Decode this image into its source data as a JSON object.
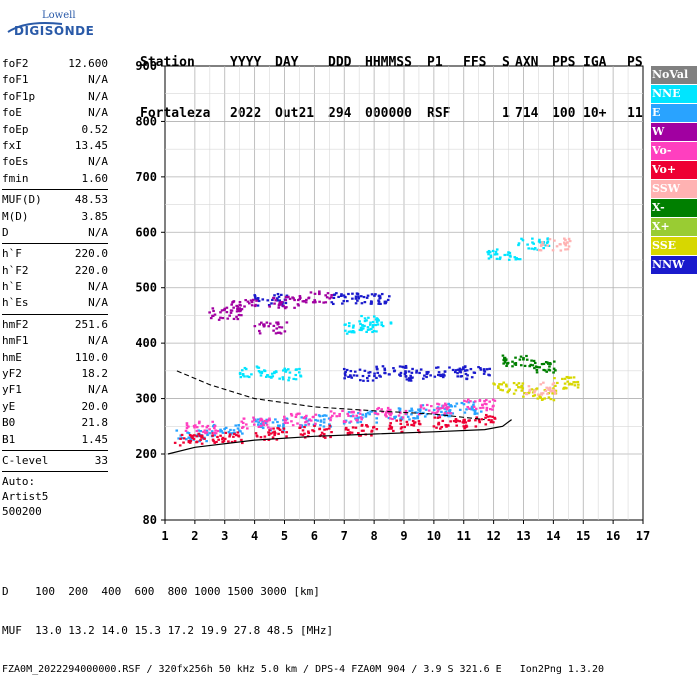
{
  "logo": {
    "top": "Lowell",
    "bottom": "DIGISONDE"
  },
  "header": {
    "labels": [
      "Station",
      "YYYY",
      "DAY",
      "DDD",
      "HHMMSS",
      "P1",
      "FFS",
      "S",
      "AXN",
      "PPS",
      "IGA",
      "PS"
    ],
    "values": [
      "Fortaleza",
      "2022",
      "Out21",
      "294",
      "000000",
      "RSF",
      "",
      "1",
      "714",
      "100",
      "10+",
      "11"
    ]
  },
  "params": [
    {
      "label": "foF2",
      "value": "12.600"
    },
    {
      "label": "foF1",
      "value": "N/A"
    },
    {
      "label": "foF1p",
      "value": "N/A"
    },
    {
      "label": "foE",
      "value": "N/A"
    },
    {
      "label": "foEp",
      "value": "0.52"
    },
    {
      "label": "fxI",
      "value": "13.45"
    },
    {
      "label": "foEs",
      "value": "N/A"
    },
    {
      "label": "fmin",
      "value": "1.60"
    },
    {
      "sep": true
    },
    {
      "label": "MUF(D)",
      "value": "48.53"
    },
    {
      "label": "M(D)",
      "value": "3.85"
    },
    {
      "label": "D",
      "value": "N/A"
    },
    {
      "sep": true
    },
    {
      "label": "h`F",
      "value": "220.0"
    },
    {
      "label": "h`F2",
      "value": "220.0"
    },
    {
      "label": "h`E",
      "value": "N/A"
    },
    {
      "label": "h`Es",
      "value": "N/A"
    },
    {
      "sep": true
    },
    {
      "label": "hmF2",
      "value": "251.6"
    },
    {
      "label": "hmF1",
      "value": "N/A"
    },
    {
      "label": "hmE",
      "value": "110.0"
    },
    {
      "label": "yF2",
      "value": "18.2"
    },
    {
      "label": "yF1",
      "value": "N/A"
    },
    {
      "label": "yE",
      "value": "20.0"
    },
    {
      "label": "B0",
      "value": "21.8"
    },
    {
      "label": "B1",
      "value": "1.45"
    },
    {
      "sep": true
    },
    {
      "label": "C-level",
      "value": "33"
    },
    {
      "sep": true
    },
    {
      "free": "Auto:"
    },
    {
      "free": "Artist5"
    },
    {
      "free": "500200"
    }
  ],
  "legend": [
    {
      "label": "NoVal",
      "color": "#808080"
    },
    {
      "label": "NNE",
      "color": "#00e5ff"
    },
    {
      "label": "E",
      "color": "#29a3ff"
    },
    {
      "label": "W",
      "color": "#a100a1"
    },
    {
      "label": "Vo-",
      "color": "#ff3fbf"
    },
    {
      "label": "Vo+",
      "color": "#ee0033"
    },
    {
      "label": "SSW",
      "color": "#ffb2b2"
    },
    {
      "label": "X-",
      "color": "#007f00"
    },
    {
      "label": "X+",
      "color": "#99cc33"
    },
    {
      "label": "SSE",
      "color": "#d7d700"
    },
    {
      "label": "NNW",
      "color": "#1a1acc"
    }
  ],
  "footer": {
    "line1": "D    100  200  400  600  800 1000 1500 3000 [km]",
    "line2": "MUF  13.0 13.2 14.0 15.3 17.2 19.9 27.8 48.5 [MHz]",
    "line3": "FZA0M_2022294000000.RSF / 320fx256h 50 kHz 5.0 km / DPS-4 FZA0M 904 / 3.9 S 321.6 E   Ion2Png 1.3.20"
  },
  "chart_data": {
    "type": "scatter",
    "title": "",
    "xlabel": "",
    "ylabel": "",
    "xlim": [
      1,
      17
    ],
    "ylim": [
      80,
      900
    ],
    "x_ticks": [
      1,
      2,
      3,
      4,
      5,
      6,
      7,
      8,
      9,
      10,
      11,
      12,
      13,
      14,
      15,
      16,
      17
    ],
    "y_ticks": [
      80,
      200,
      300,
      400,
      500,
      600,
      700,
      800,
      900
    ],
    "grid": true,
    "legend_position": "right",
    "series": [
      {
        "name": "E",
        "points": [
          [
            1.9,
            235
          ],
          [
            3.0,
            245
          ],
          [
            4.5,
            255
          ],
          [
            6.0,
            262
          ],
          [
            7.5,
            268
          ],
          [
            9.0,
            275
          ],
          [
            10.0,
            280
          ],
          [
            11.0,
            285
          ]
        ]
      },
      {
        "name": "Vo+",
        "points": [
          [
            1.8,
            228
          ],
          [
            3.0,
            232
          ],
          [
            4.5,
            238
          ],
          [
            6.0,
            242
          ],
          [
            7.5,
            246
          ],
          [
            9.0,
            252
          ],
          [
            10.5,
            258
          ],
          [
            11.5,
            262
          ]
        ]
      },
      {
        "name": "Vo-",
        "points": [
          [
            2.2,
            250
          ],
          [
            4.0,
            258
          ],
          [
            5.5,
            264
          ],
          [
            7.0,
            270
          ],
          [
            8.5,
            276
          ],
          [
            10.0,
            282
          ],
          [
            11.5,
            290
          ]
        ]
      },
      {
        "name": "NNW",
        "points": [
          [
            7.5,
            345
          ],
          [
            8.5,
            350
          ],
          [
            9.5,
            345
          ],
          [
            10.5,
            350
          ],
          [
            11.3,
            348
          ],
          [
            8.0,
            480
          ],
          [
            7.0,
            482
          ],
          [
            4.5,
            480
          ]
        ]
      },
      {
        "name": "W",
        "points": [
          [
            3.0,
            455
          ],
          [
            3.5,
            470
          ],
          [
            4.5,
            430
          ],
          [
            5.0,
            475
          ],
          [
            6.0,
            485
          ]
        ]
      },
      {
        "name": "NNE",
        "points": [
          [
            4.0,
            350
          ],
          [
            5.0,
            345
          ],
          [
            7.5,
            430
          ],
          [
            8.0,
            440
          ],
          [
            12.3,
            560
          ],
          [
            13.3,
            580
          ]
        ]
      },
      {
        "name": "SSE",
        "points": [
          [
            12.5,
            320
          ],
          [
            13.5,
            310
          ],
          [
            14.5,
            330
          ]
        ]
      },
      {
        "name": "X-",
        "points": [
          [
            12.8,
            370
          ],
          [
            13.5,
            360
          ]
        ]
      },
      {
        "name": "SSW",
        "points": [
          [
            14.0,
            580
          ],
          [
            13.5,
            320
          ]
        ]
      }
    ]
  }
}
